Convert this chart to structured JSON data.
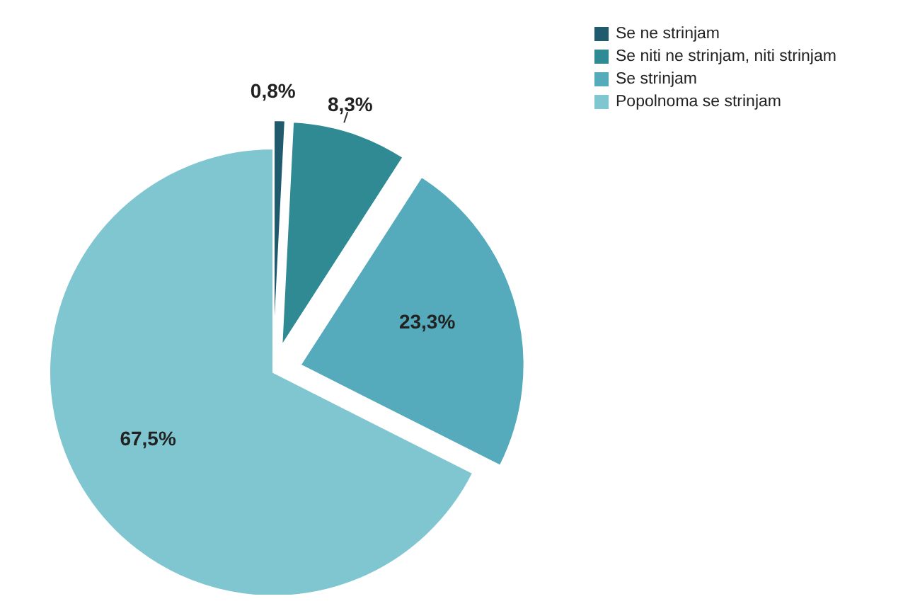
{
  "chart_data": {
    "type": "pie",
    "categories": [
      "Se ne strinjam",
      "Se niti ne strinjam, niti strinjam",
      "Se strinjam",
      "Popolnoma se strinjam"
    ],
    "values": [
      0.8,
      8.3,
      23.3,
      67.5
    ],
    "colors": [
      "#1f5b6c",
      "#2f8a93",
      "#55abbb",
      "#7fc6d1"
    ],
    "value_labels": [
      "0,8%",
      "8,3%",
      "23,3%",
      "67,5%"
    ],
    "legend": "top right"
  }
}
